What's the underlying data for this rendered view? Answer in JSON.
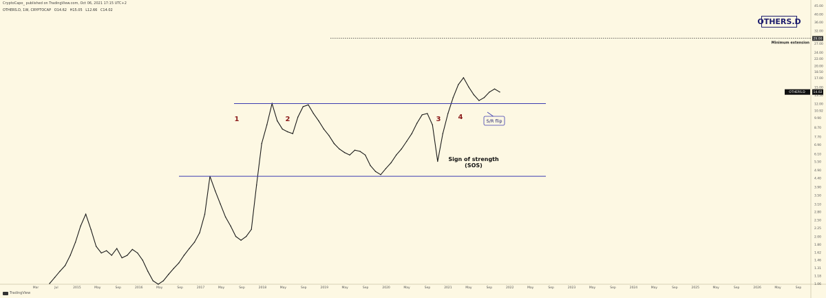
{
  "header": {
    "publisher_line": "CryptoCapo_ published on TradingView.com, Oct 06, 2021 17:15 UTC+2",
    "symbol": "OTHERS.D, 1W, CRYPTOCAP",
    "ohlc": [
      "O14.62",
      "H15.05",
      "L12.66",
      "C14.02"
    ]
  },
  "badge": "OTHERS.D",
  "footer_logo": "TradingView",
  "chart_data": {
    "type": "line",
    "x_axis": {
      "tick_labels": [
        "Mar",
        "Jul",
        "2015",
        "May",
        "Sep",
        "2016",
        "May",
        "Sep",
        "2017",
        "May",
        "Sep",
        "2018",
        "May",
        "Sep",
        "2019",
        "May",
        "Sep",
        "2020",
        "May",
        "Sep",
        "2021",
        "May",
        "Sep",
        "2022",
        "May",
        "Sep",
        "2023",
        "May",
        "Sep",
        "2024",
        "May",
        "Sep",
        "2025",
        "May",
        "Sep",
        "2026",
        "May",
        "Sep"
      ]
    },
    "y_axis": {
      "scale": "log",
      "tick_labels": [
        "45.00",
        "40.00",
        "36.00",
        "32.00",
        "29.00",
        "27.00",
        "24.00",
        "22.00",
        "20.00",
        "18.50",
        "17.00",
        "15.00",
        "13.50",
        "12.00",
        "10.92",
        "9.90",
        "8.70",
        "7.70",
        "6.90",
        "6.10",
        "5.50",
        "4.90",
        "4.40",
        "3.90",
        "3.50",
        "3.10",
        "2.80",
        "2.50",
        "2.25",
        "2.00",
        "1.80",
        "1.62",
        "1.46",
        "1.31",
        "1.18",
        "1.06"
      ],
      "last_price": "14.02",
      "last_price_symbol": "OTHERS.D",
      "target_level": "29.00"
    },
    "series": [
      {
        "values": [
          1.06,
          1.15,
          1.25,
          1.35,
          1.55,
          1.85,
          2.3,
          2.7,
          2.2,
          1.75,
          1.6,
          1.65,
          1.55,
          1.7,
          1.5,
          1.55,
          1.68,
          1.6,
          1.45,
          1.25,
          1.1,
          1.05,
          1.1,
          1.2,
          1.3,
          1.4,
          1.55,
          1.7,
          1.85,
          2.1,
          2.7,
          4.5,
          3.7,
          3.1,
          2.6,
          2.3,
          2.0,
          1.9,
          2.0,
          2.2,
          4.0,
          7.0,
          9.0,
          12.0,
          9.5,
          8.5,
          8.2,
          8.0,
          10.0,
          11.5,
          11.8,
          10.5,
          9.5,
          8.5,
          7.8,
          7.0,
          6.5,
          6.2,
          6.0,
          6.4,
          6.3,
          6.0,
          5.2,
          4.8,
          4.6,
          5.0,
          5.4,
          6.0,
          6.5,
          7.2,
          8.0,
          9.2,
          10.3,
          10.5,
          9.0,
          5.5,
          8.0,
          10.5,
          13.0,
          15.5,
          17.0,
          15.0,
          13.5,
          12.5,
          13.0,
          14.0,
          14.6,
          14.02
        ]
      }
    ],
    "levels": [
      {
        "name": "resistance",
        "value": 12.0
      },
      {
        "name": "support",
        "value": 4.5
      },
      {
        "name": "minimum-extension",
        "value": 29.0
      }
    ],
    "annotations": {
      "peaks": [
        "1",
        "2",
        "3",
        "4"
      ],
      "target_label": "Minimum extension",
      "sos_line1": "Sign of strength",
      "sos_line2": "(SOS)",
      "sr_flip": "S/R flip"
    }
  }
}
